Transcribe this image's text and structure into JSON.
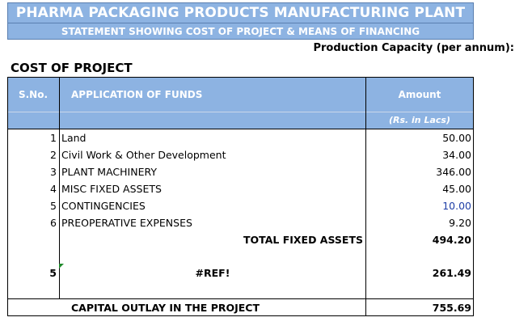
{
  "header": {
    "title": "PHARMA PACKAGING PRODUCTS MANUFACTURING PLANT",
    "subtitle": "STATEMENT SHOWING COST OF PROJECT & MEANS OF FINANCING",
    "capacity_label": "Production Capacity (per annum):"
  },
  "section_title": "COST OF PROJECT",
  "table": {
    "col_sno": "S.No.",
    "col_application": "APPLICATION OF FUNDS",
    "col_amount": "Amount",
    "unit": "(Rs. in Lacs)",
    "rows": [
      {
        "sno": "1",
        "desc": "Land",
        "amount": "50.00"
      },
      {
        "sno": "2",
        "desc": "Civil Work & Other Development",
        "amount": "34.00"
      },
      {
        "sno": "3",
        "desc": "PLANT MACHINERY",
        "amount": "346.00"
      },
      {
        "sno": "4",
        "desc": "MISC FIXED ASSETS",
        "amount": "45.00"
      },
      {
        "sno": "5",
        "desc": "CONTINGENCIES",
        "amount": "10.00"
      },
      {
        "sno": "6",
        "desc": "PREOPERATIVE EXPENSES",
        "amount": "9.20"
      }
    ],
    "total_fixed": {
      "label": "TOTAL FIXED ASSETS",
      "amount": "494.20"
    },
    "ref_row": {
      "sno": "5",
      "desc": "#REF!",
      "amount": "261.49"
    },
    "capital_outlay": {
      "label": "CAPITAL OUTLAY IN THE PROJECT",
      "amount": "755.69"
    }
  },
  "colors": {
    "header_fill": "#8db3e2",
    "header_text": "#ffffff",
    "highlight_value": "#1f3fa6",
    "comment_marker": "#1e8a2a"
  }
}
